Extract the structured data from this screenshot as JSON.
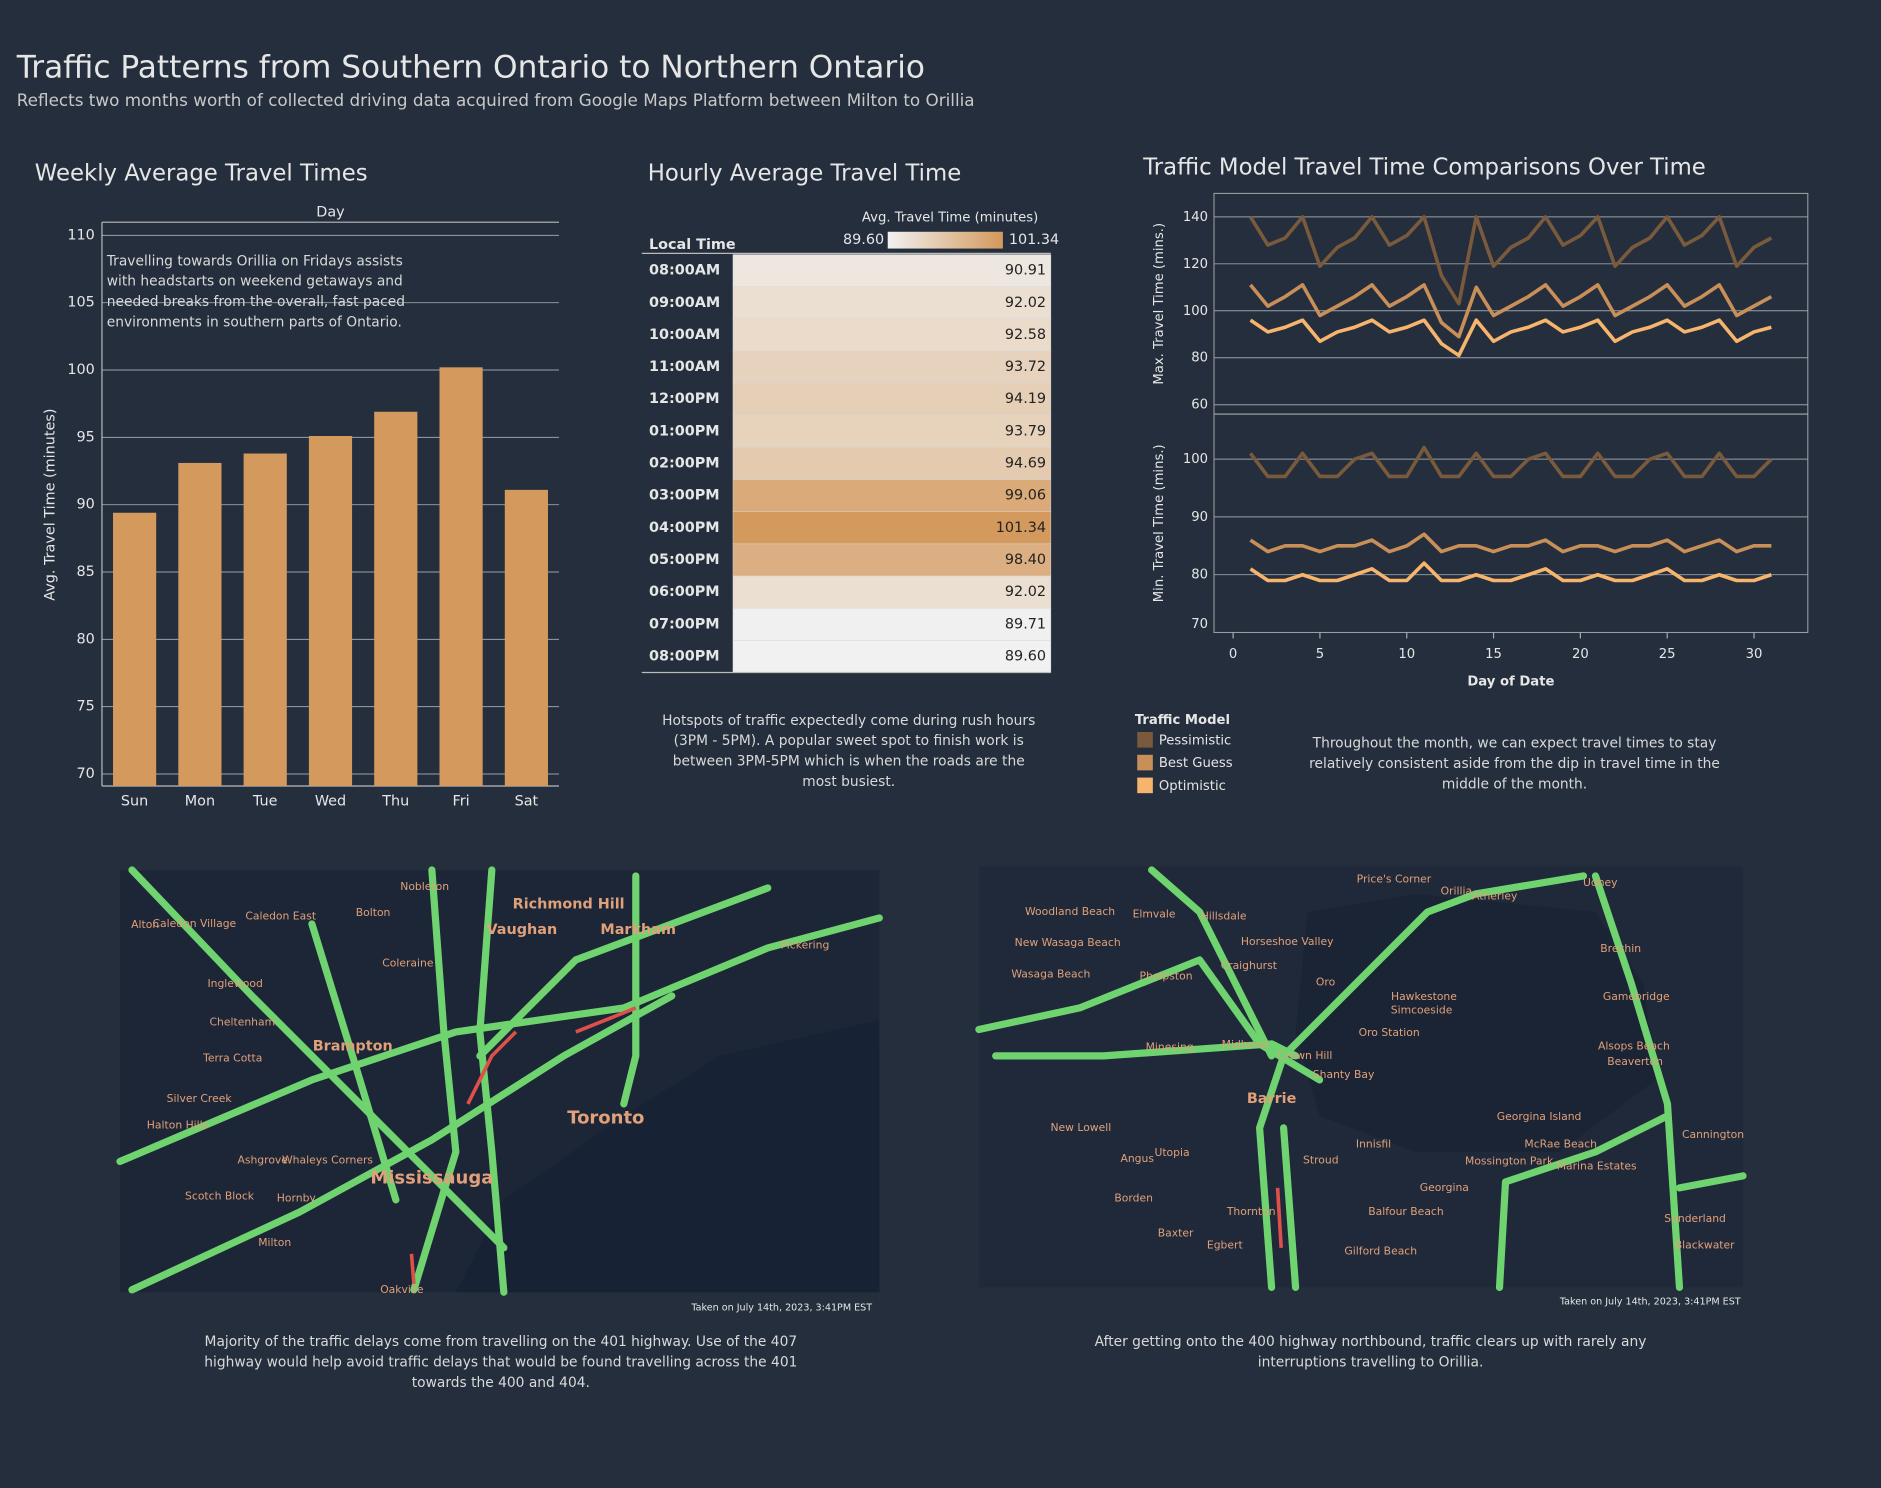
{
  "header": {
    "title": "Traffic Patterns from Southern Ontario to Northern Ontario",
    "subtitle": "Reflects two months worth of collected driving data acquired from Google Maps Platform between Milton to Orillia"
  },
  "chart_data": [
    {
      "type": "bar",
      "title": "Weekly Average Travel Times",
      "x_header": "Day",
      "ylabel": "Avg. Travel Time (minutes)",
      "annotation": "Travelling towards Orillia on Fridays assists with headstarts on weekend getaways and needed breaks from the overall, fast paced environments in southern parts of Ontario.",
      "categories": [
        "Sun",
        "Mon",
        "Tue",
        "Wed",
        "Thu",
        "Fri",
        "Sat"
      ],
      "values": [
        89.4,
        93.1,
        93.8,
        95.1,
        96.9,
        100.2,
        91.1
      ],
      "color": "#d4995c",
      "ylim": [
        70,
        110
      ],
      "yticks": [
        70,
        75,
        80,
        85,
        90,
        95,
        100,
        105,
        110
      ],
      "grid": true
    },
    {
      "type": "heatmap",
      "title": "Hourly Average Travel Time",
      "row_header": "Local Time",
      "legend_title": "Avg. Travel Time (minutes)",
      "color_range": [
        {
          "value": 89.6,
          "label": "89.60"
        },
        {
          "value": 101.34,
          "label": "101.34"
        }
      ],
      "colors": [
        "#f1f1f1",
        "#d4995c"
      ],
      "categories": [
        "08:00AM",
        "09:00AM",
        "10:00AM",
        "11:00AM",
        "12:00PM",
        "01:00PM",
        "02:00PM",
        "03:00PM",
        "04:00PM",
        "05:00PM",
        "06:00PM",
        "07:00PM",
        "08:00PM"
      ],
      "values": [
        90.91,
        92.02,
        92.58,
        93.72,
        94.19,
        93.79,
        94.69,
        99.06,
        101.34,
        98.4,
        92.02,
        89.71,
        89.6
      ],
      "value_labels": [
        "90.91",
        "92.02",
        "92.58",
        "93.72",
        "94.19",
        "93.79",
        "94.69",
        "99.06",
        "101.34",
        "98.40",
        "92.02",
        "89.71",
        "89.60"
      ],
      "note": "Hotspots of traffic expectedly come during rush hours (3PM - 5PM). A popular sweet spot to finish work is between 3PM-5PM which is when the roads are the most busiest."
    },
    {
      "type": "line",
      "title": "Traffic Model Travel Time Comparisons Over Time",
      "xlabel": "Day of Date",
      "legend_title": "Traffic Model",
      "note": "Throughout the month, we can expect travel times to stay relatively consistent aside from the dip in travel time in the middle of the month.",
      "x": [
        1,
        2,
        3,
        4,
        5,
        6,
        7,
        8,
        9,
        10,
        11,
        12,
        13,
        14,
        15,
        16,
        17,
        18,
        19,
        20,
        21,
        22,
        23,
        24,
        25,
        26,
        27,
        28,
        29,
        30,
        31
      ],
      "xlim": [
        -1.1,
        33.1
      ],
      "xticks": [
        0,
        5,
        10,
        15,
        20,
        25,
        30
      ],
      "panels": [
        {
          "ylabel": "Max. Travel Time (mins.)",
          "ylim": [
            56,
            150
          ],
          "yticks": [
            60,
            80,
            100,
            120,
            140
          ],
          "series": [
            {
              "name": "Pessimistic",
              "color": "#7a5a3c",
              "values": [
                140,
                128,
                131,
                140,
                119,
                127,
                131,
                140,
                128,
                132,
                140,
                115,
                103,
                140,
                119,
                127,
                131,
                140,
                128,
                132,
                140,
                119,
                127,
                131,
                140,
                128,
                132,
                140,
                119,
                127,
                131
              ]
            },
            {
              "name": "Best Guess",
              "color": "#c98f58",
              "values": [
                111,
                102,
                106,
                111,
                98,
                102,
                106,
                111,
                102,
                106,
                111,
                95,
                89,
                110,
                98,
                102,
                106,
                111,
                102,
                106,
                111,
                98,
                102,
                106,
                111,
                102,
                106,
                111,
                98,
                102,
                106
              ]
            },
            {
              "name": "Optimistic",
              "color": "#f7b46c",
              "values": [
                96,
                91,
                93,
                96,
                87,
                91,
                93,
                96,
                91,
                93,
                96,
                86,
                81,
                96,
                87,
                91,
                93,
                96,
                91,
                93,
                96,
                87,
                91,
                93,
                96,
                91,
                93,
                96,
                87,
                91,
                93
              ]
            }
          ]
        },
        {
          "ylabel": "Min. Travel Time (mins.)",
          "ylim": [
            70,
            107.8
          ],
          "yticks": [
            70,
            80,
            90,
            100
          ],
          "series": [
            {
              "name": "Pessimistic",
              "color": "#7a5a3c",
              "values": [
                101,
                97,
                97,
                101,
                97,
                97,
                100,
                101,
                97,
                97,
                102,
                97,
                97,
                101,
                97,
                97,
                100,
                101,
                97,
                97,
                101,
                97,
                97,
                100,
                101,
                97,
                97,
                101,
                97,
                97,
                100
              ]
            },
            {
              "name": "Best Guess",
              "color": "#c98f58",
              "values": [
                86,
                84,
                85,
                85,
                84,
                85,
                85,
                86,
                84,
                85,
                87,
                84,
                85,
                85,
                84,
                85,
                85,
                86,
                84,
                85,
                85,
                84,
                85,
                85,
                86,
                84,
                85,
                86,
                84,
                85,
                85
              ]
            },
            {
              "name": "Optimistic",
              "color": "#f7b46c",
              "values": [
                81,
                79,
                79,
                80,
                79,
                79,
                80,
                81,
                79,
                79,
                82,
                79,
                79,
                80,
                79,
                79,
                80,
                81,
                79,
                79,
                80,
                79,
                79,
                80,
                81,
                79,
                79,
                80,
                79,
                79,
                80
              ]
            }
          ]
        }
      ]
    }
  ],
  "maps": [
    {
      "labels": [
        "Richmond Hill",
        "Vaughan",
        "Markham",
        "Brampton",
        "Toronto",
        "Mississauga",
        "Caledon East",
        "Bolton",
        "Nobleton",
        "Caledon Village",
        "Alton",
        "Inglewood",
        "Cheltenham",
        "Terra Cotta",
        "Silver Creek",
        "Halton Hills",
        "Ashgrove",
        "Scotch Block",
        "Hornby",
        "Milton",
        "Oakville",
        "Pickering",
        "Coleraine",
        "Whaleys Corners"
      ],
      "caption": "Taken on July 14th, 2023, 3:41PM EST",
      "note": "Majority of the traffic delays come from travelling on the 401 highway. Use of the 407 highway would help avoid traffic delays that would be found travelling across the 401 towards the 400 and 404."
    },
    {
      "labels": [
        "Woodland Beach",
        "Elmvale",
        "Hillsdale",
        "Horseshoe Valley",
        "Craighurst",
        "Oro",
        "Price's Corner",
        "Orillia",
        "Atherley",
        "Udney",
        "New Wasaga Beach",
        "Wasaga Beach",
        "Phelpston",
        "Hawkestone",
        "Simcoeside",
        "Oro Station",
        "Brechin",
        "Gamebridge",
        "Minesing",
        "Midhurst",
        "Crown Hill",
        "Shanty Bay",
        "Barrie",
        "Alsops Beach",
        "Beaverton",
        "New Lowell",
        "Angus",
        "Utopia",
        "Innisfil",
        "Stroud",
        "Georgina Island",
        "McRae Beach",
        "Mossington Park",
        "Marina Estates",
        "Cannington",
        "Georgina",
        "Borden",
        "Baxter",
        "Thornton",
        "Egbert",
        "Balfour Beach",
        "Gilford Beach",
        "Sunderland",
        "Blackwater"
      ],
      "caption": "Taken on July 14th, 2023, 3:41PM EST",
      "note": "After getting onto the 400 highway northbound, traffic clears up with rarely any interruptions travelling to Orillia."
    }
  ]
}
